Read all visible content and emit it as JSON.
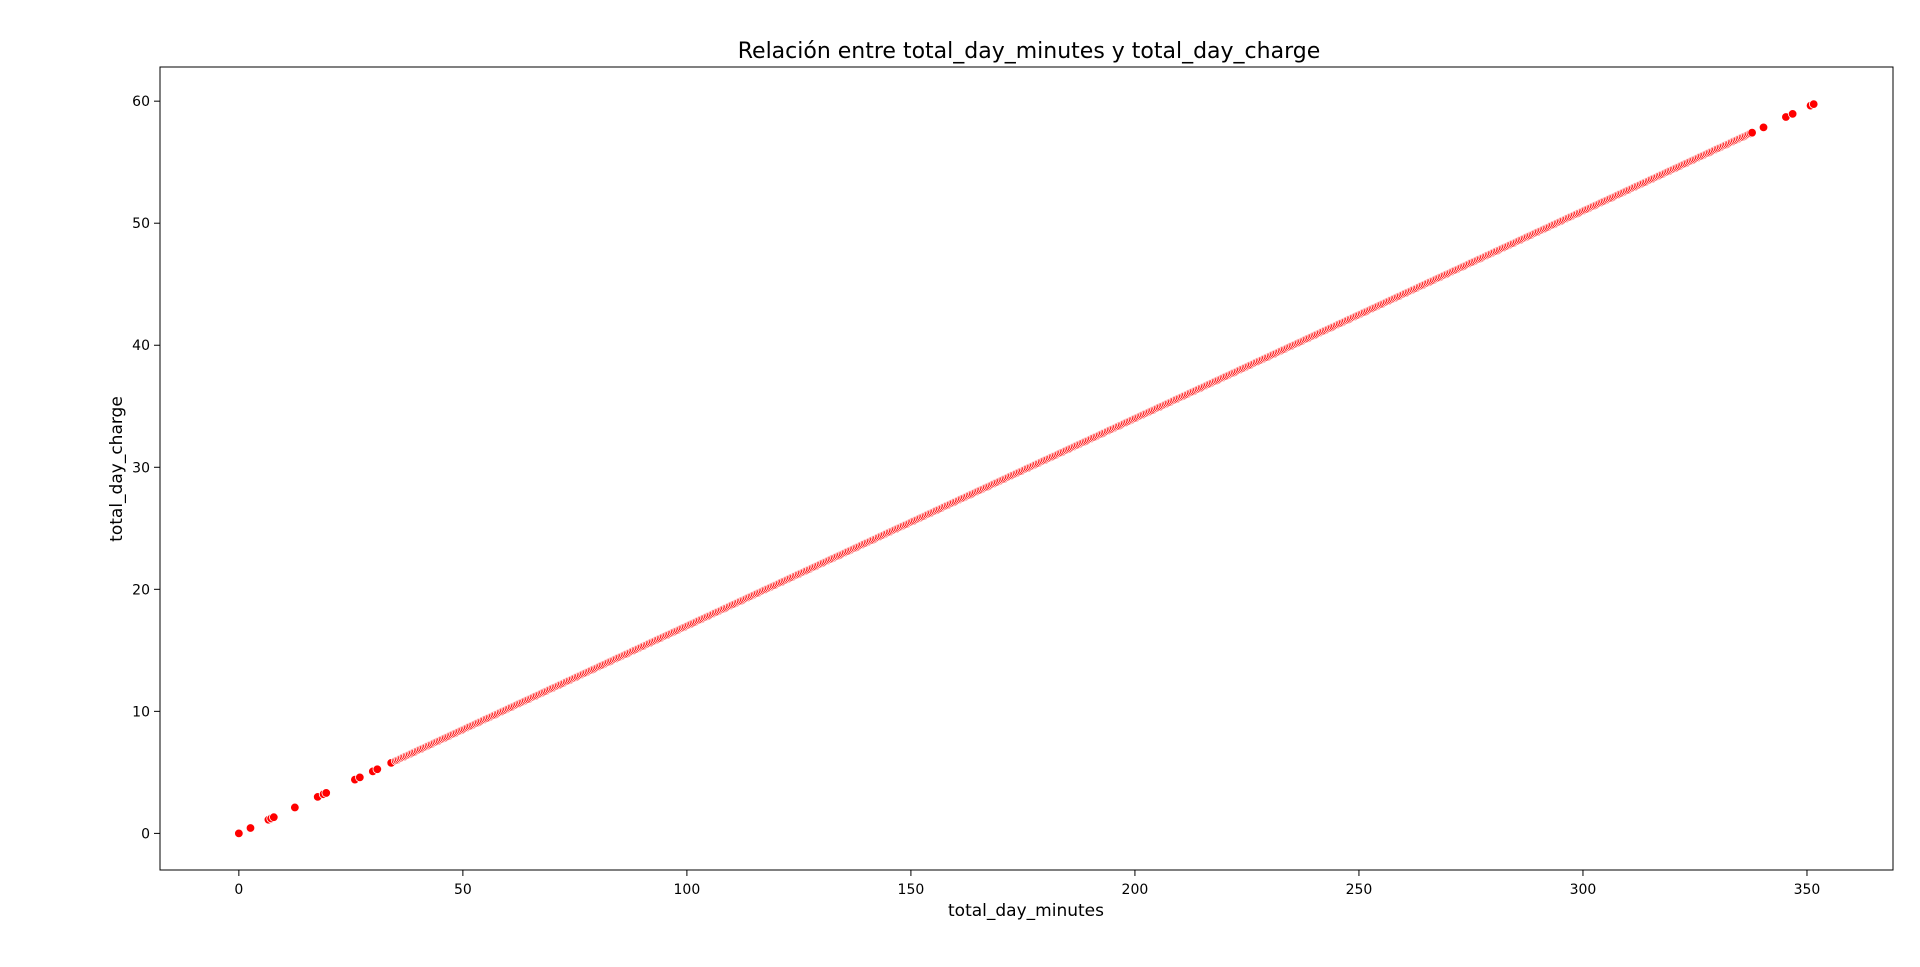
{
  "chart_data": {
    "type": "scatter",
    "title": "Relación entre total_day_minutes y total_day_charge",
    "xlabel": "total_day_minutes",
    "ylabel": "total_day_charge",
    "xlim": [
      -17.6,
      369.2
    ],
    "ylim": [
      -3.0,
      62.8
    ],
    "xticks": [
      0,
      50,
      100,
      150,
      200,
      250,
      300,
      350
    ],
    "yticks": [
      0,
      10,
      20,
      30,
      40,
      50,
      60
    ],
    "xtick_labels": [
      "0",
      "50",
      "100",
      "150",
      "200",
      "250",
      "300",
      "350"
    ],
    "ytick_labels": [
      "0",
      "10",
      "20",
      "30",
      "40",
      "50",
      "60"
    ],
    "grid": false,
    "marker_color": "#ff0000",
    "marker_edge_color": "#ffffff",
    "rate_per_minute": 0.17,
    "dense_range": {
      "min": 35,
      "max": 338,
      "step": 0.35
    },
    "sparse_x": [
      0,
      2.6,
      6.6,
      7.2,
      7.8,
      12.5,
      17.6,
      18.9,
      19.5,
      25.9,
      27.0,
      29.9,
      30.9,
      34.0,
      35.1,
      37.8,
      340.3,
      345.3,
      346.8,
      350.8,
      351.5
    ]
  }
}
